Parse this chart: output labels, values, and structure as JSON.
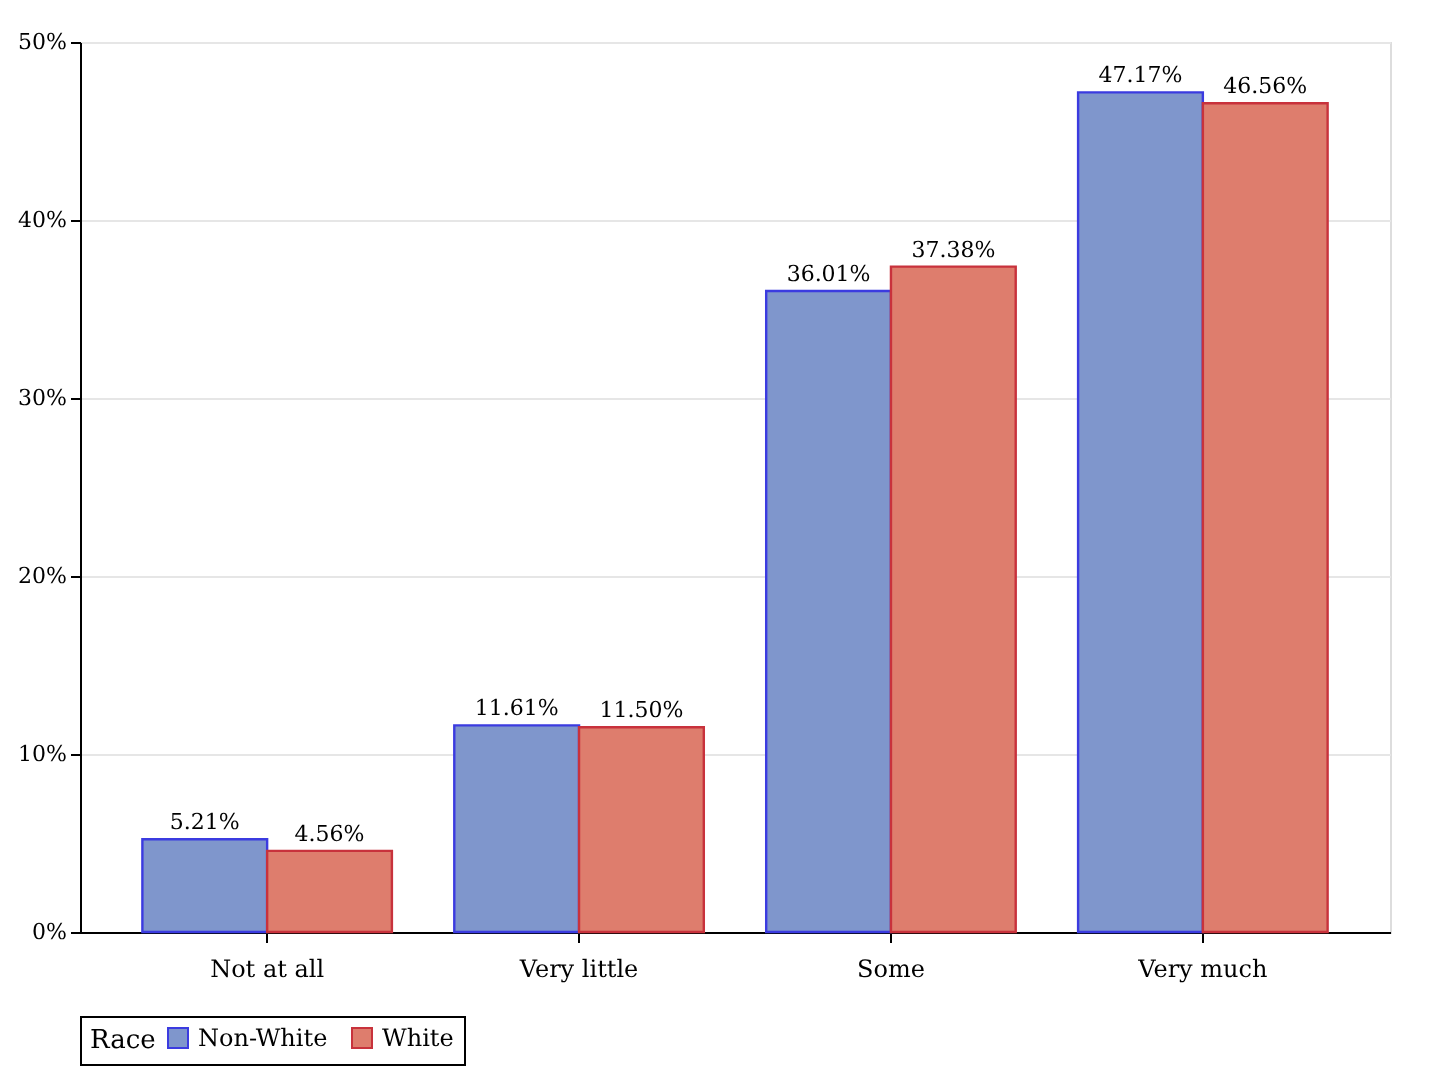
{
  "chart_data": {
    "type": "bar",
    "categories": [
      "Not at all",
      "Very little",
      "Some",
      "Very much"
    ],
    "series": [
      {
        "name": "Non-White",
        "color": "#7f96cc",
        "values": [
          5.21,
          11.61,
          36.01,
          47.17
        ],
        "value_labels": [
          "5.21%",
          "11.61%",
          "36.01%",
          "47.17%"
        ]
      },
      {
        "name": "White",
        "color": "#de7d6d",
        "values": [
          4.56,
          11.5,
          37.38,
          46.56
        ],
        "value_labels": [
          "4.56%",
          "11.50%",
          "37.38%",
          "46.56%"
        ]
      }
    ],
    "ylim": [
      0,
      50
    ],
    "yticks": [
      {
        "value": 0,
        "label": "0%"
      },
      {
        "value": 10,
        "label": "10%"
      },
      {
        "value": 20,
        "label": "20%"
      },
      {
        "value": 30,
        "label": "30%"
      },
      {
        "value": 40,
        "label": "40%"
      },
      {
        "value": 50,
        "label": "50%"
      }
    ],
    "legend_title": "Race",
    "legend": "bottom",
    "grid": "y"
  }
}
